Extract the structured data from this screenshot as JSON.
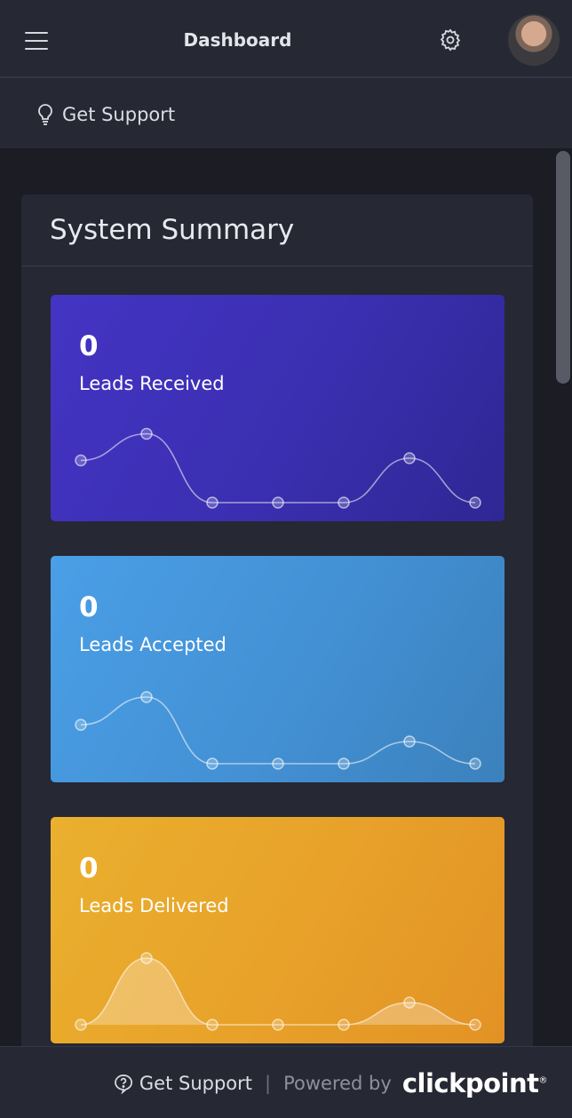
{
  "header": {
    "title": "Dashboard",
    "menu_icon": "hamburger-menu-icon",
    "settings_icon": "gear-icon"
  },
  "support_bar": {
    "label": "Get Support",
    "icon": "lightbulb-icon"
  },
  "summary": {
    "title": "System Summary",
    "cards": [
      {
        "value": "0",
        "label": "Leads Received",
        "color": "#4434c4",
        "trend": [
          0.38,
          0.62,
          0.0,
          0.0,
          0.0,
          0.4,
          0.0
        ],
        "fill": false
      },
      {
        "value": "0",
        "label": "Leads Accepted",
        "color": "#4a9fe6",
        "trend": [
          0.35,
          0.6,
          0.0,
          0.0,
          0.0,
          0.2,
          0.0
        ],
        "fill": false
      },
      {
        "value": "0",
        "label": "Leads Delivered",
        "color": "#eab02e",
        "trend": [
          0.0,
          0.6,
          0.0,
          0.0,
          0.0,
          0.2,
          0.0
        ],
        "fill": true
      }
    ]
  },
  "footer": {
    "support_label": "Get Support",
    "separator": "|",
    "powered_by": "Powered by",
    "brand": "clickpoint",
    "brand_mark": "®"
  }
}
